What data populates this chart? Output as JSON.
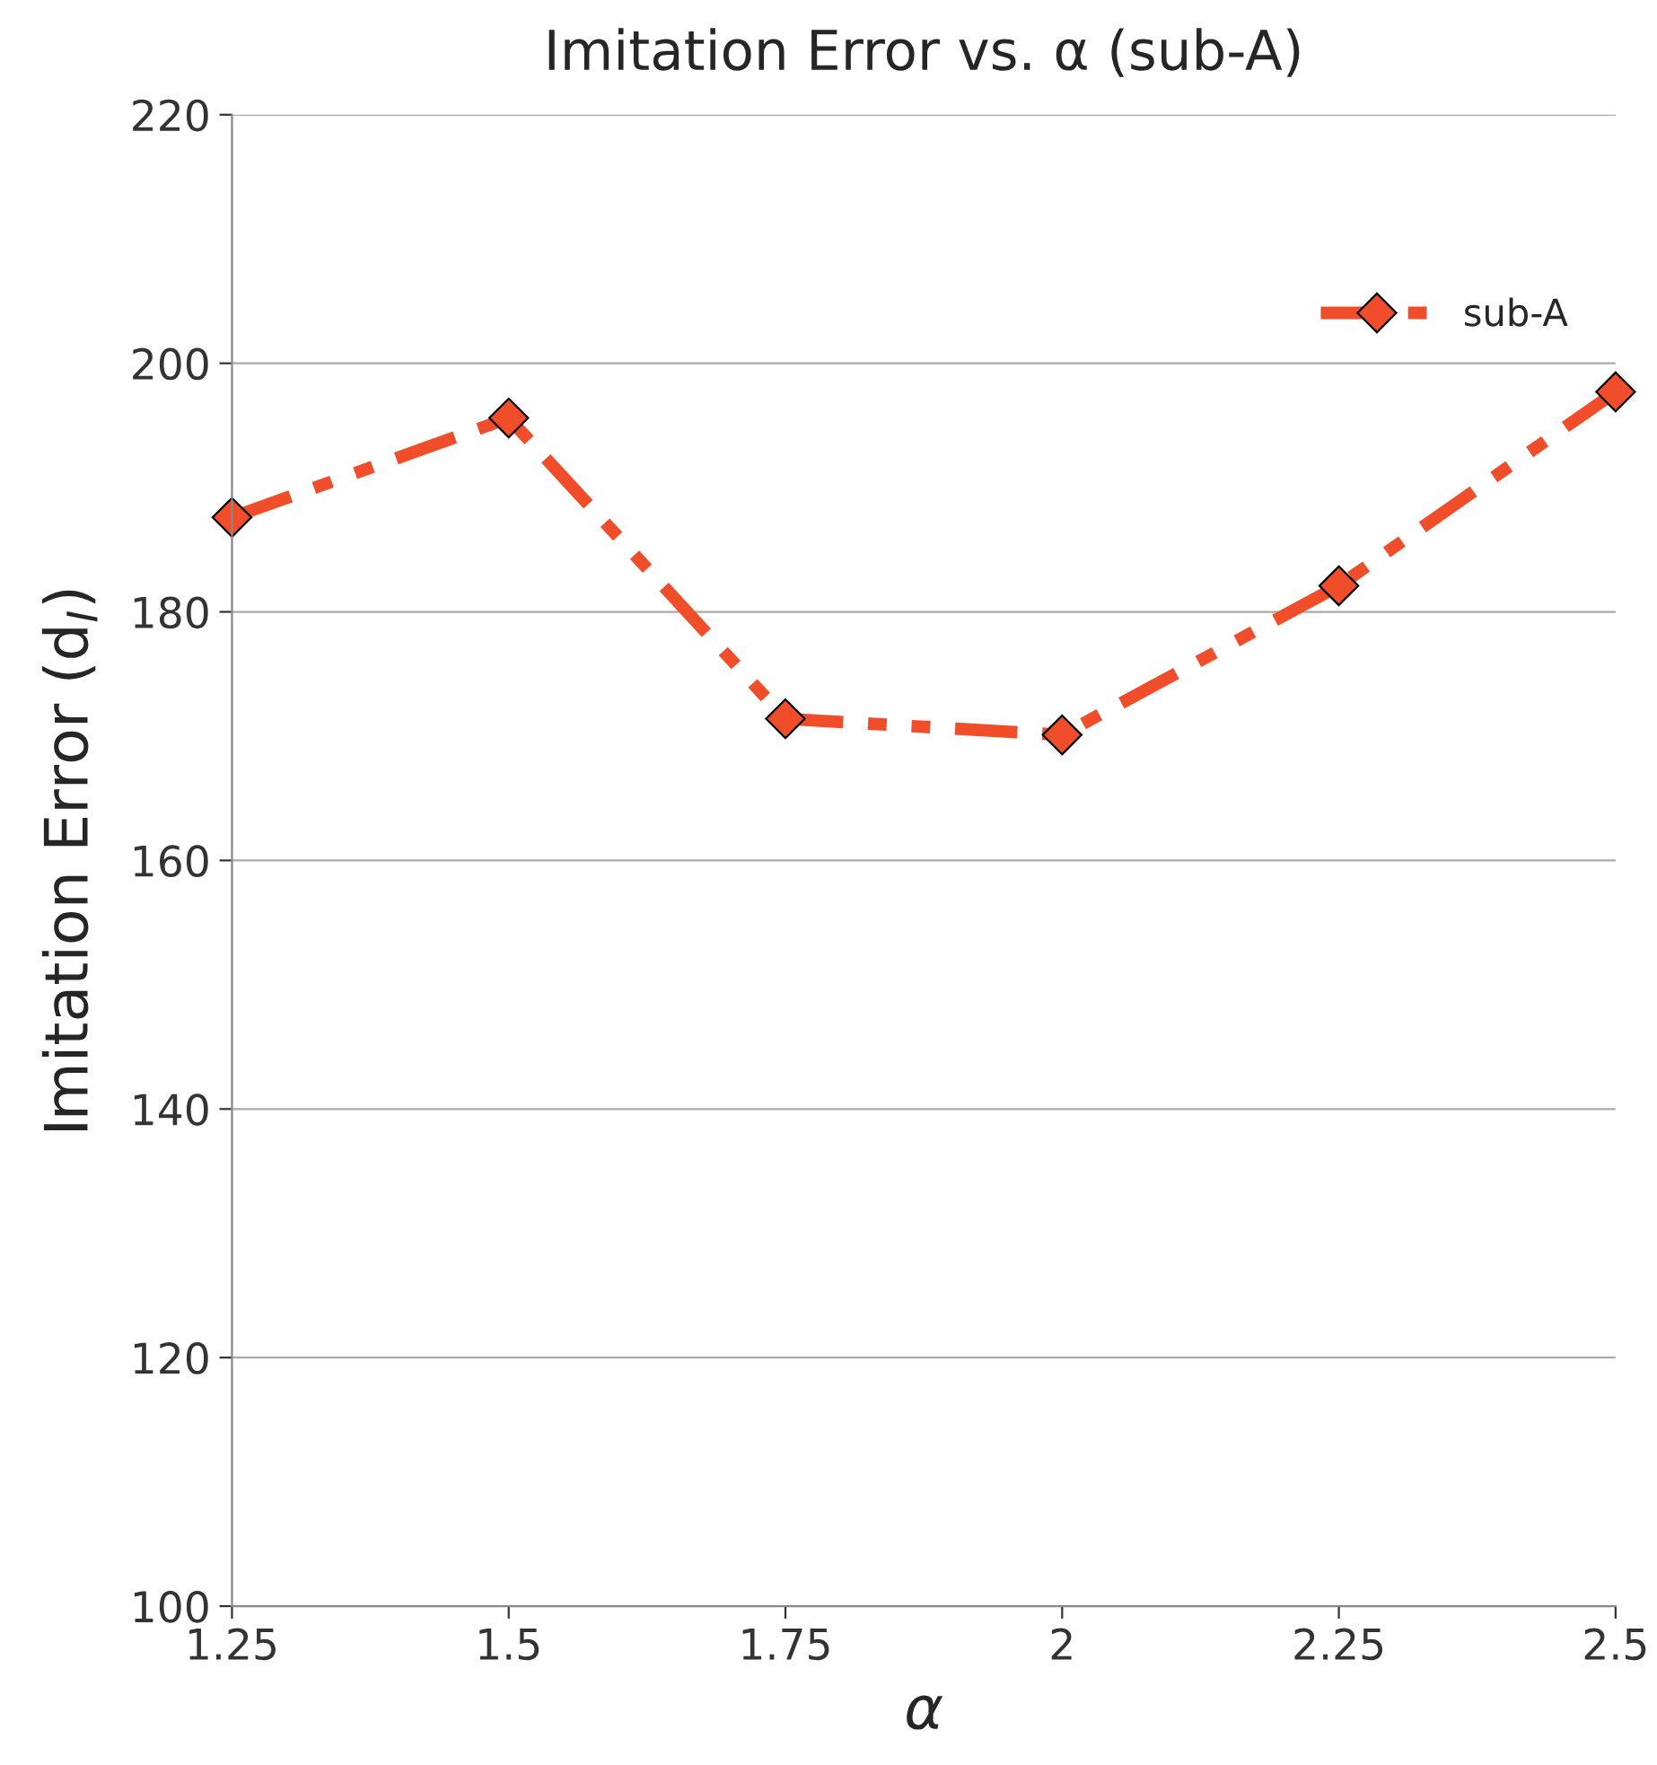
{
  "chart_data": {
    "type": "line",
    "title": "Imitation Error vs. α (sub-A)",
    "xlabel": "α",
    "ylabel": "Imitation Error (d$_{I}$)",
    "x": [
      1.25,
      1.5,
      1.75,
      2,
      2.25,
      2.5
    ],
    "series": [
      {
        "name": "sub-A",
        "color": "#f04e2a",
        "values": [
          187.6,
          195.6,
          171.4,
          170.1,
          182.1,
          197.7
        ]
      }
    ],
    "xlim": [
      1.25,
      2.5
    ],
    "xticks": [
      1.25,
      1.5,
      1.75,
      2,
      2.25,
      2.5
    ],
    "ylim": [
      100,
      220
    ],
    "yticks": [
      100,
      120,
      140,
      160,
      180,
      200,
      220
    ],
    "grid": "y",
    "legend": "top right",
    "marker": "diamond",
    "line_style": "dashed"
  }
}
